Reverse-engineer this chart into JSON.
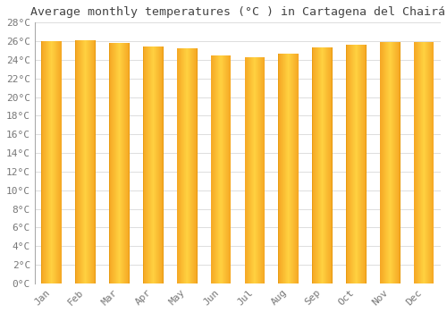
{
  "title": "Average monthly temperatures (°C ) in Cartagena del Chairá",
  "months": [
    "Jan",
    "Feb",
    "Mar",
    "Apr",
    "May",
    "Jun",
    "Jul",
    "Aug",
    "Sep",
    "Oct",
    "Nov",
    "Dec"
  ],
  "temperatures": [
    26.0,
    26.1,
    25.8,
    25.4,
    25.2,
    24.5,
    24.3,
    24.7,
    25.3,
    25.6,
    25.9,
    25.9
  ],
  "bar_color_left": "#F5A623",
  "bar_color_center": "#FFD140",
  "bar_color_right": "#F5A623",
  "bar_border_color": "#E89B10",
  "ylim": [
    0,
    28
  ],
  "ytick_step": 2,
  "background_color": "#FFFFFF",
  "grid_color": "#DDDDDD",
  "font_family": "monospace",
  "title_fontsize": 9.5,
  "tick_fontsize": 8,
  "tick_color": "#777777",
  "bar_width": 0.6
}
